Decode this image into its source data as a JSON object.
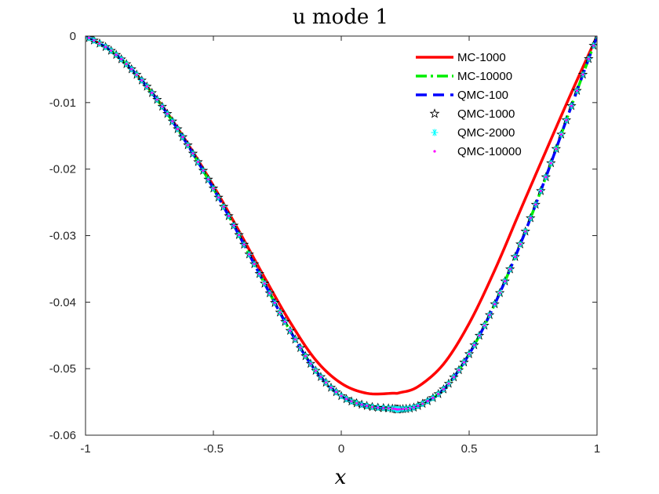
{
  "chart_data": {
    "type": "line",
    "title": "u mode 1",
    "xlabel": "x",
    "ylabel": "",
    "xlim": [
      -1,
      1
    ],
    "ylim": [
      -0.06,
      0
    ],
    "xticks": [
      -1,
      -0.5,
      0,
      0.5,
      1
    ],
    "xtick_labels": [
      "-1",
      "-0.5",
      "0",
      "0.5",
      "1"
    ],
    "yticks": [
      0,
      -0.01,
      -0.02,
      -0.03,
      -0.04,
      -0.05,
      -0.06
    ],
    "ytick_labels": [
      "0",
      "-0.01",
      "-0.02",
      "-0.03",
      "-0.04",
      "-0.05",
      "-0.06"
    ],
    "legend_position": "top-right",
    "x": [
      -1,
      -0.9,
      -0.8,
      -0.7,
      -0.6,
      -0.5,
      -0.4,
      -0.3,
      -0.2,
      -0.1,
      0,
      0.1,
      0.2,
      0.23,
      0.3,
      0.4,
      0.5,
      0.6,
      0.7,
      0.8,
      0.9,
      1
    ],
    "series": [
      {
        "name": "MC-1000",
        "color": "#ff0000",
        "style": "solid",
        "values": [
          0,
          -0.0022,
          -0.0058,
          -0.0105,
          -0.0162,
          -0.0225,
          -0.0293,
          -0.0363,
          -0.043,
          -0.0487,
          -0.0522,
          -0.0537,
          -0.0537,
          -0.0536,
          -0.0527,
          -0.0493,
          -0.0432,
          -0.0352,
          -0.0262,
          -0.0173,
          -0.0085,
          0
        ]
      },
      {
        "name": "MC-10000",
        "color": "#00ee00",
        "style": "dashdot",
        "values": [
          0,
          -0.0022,
          -0.0058,
          -0.0106,
          -0.0164,
          -0.0229,
          -0.0299,
          -0.0372,
          -0.0443,
          -0.0503,
          -0.0541,
          -0.0556,
          -0.056,
          -0.0561,
          -0.0556,
          -0.0531,
          -0.0478,
          -0.0403,
          -0.0313,
          -0.0212,
          -0.0105,
          0
        ]
      },
      {
        "name": "QMC-100",
        "color": "#0000ff",
        "style": "dashed",
        "values": [
          0,
          -0.0022,
          -0.0058,
          -0.0106,
          -0.0164,
          -0.0229,
          -0.0299,
          -0.0372,
          -0.0443,
          -0.0503,
          -0.0541,
          -0.0556,
          -0.056,
          -0.0561,
          -0.0556,
          -0.0531,
          -0.0478,
          -0.0403,
          -0.0313,
          -0.0212,
          -0.0105,
          0
        ]
      },
      {
        "name": "QMC-1000",
        "color": "#000000",
        "style": "star-marker",
        "values": [
          0,
          -0.0022,
          -0.0058,
          -0.0106,
          -0.0164,
          -0.0229,
          -0.0299,
          -0.0372,
          -0.0443,
          -0.0503,
          -0.0541,
          -0.0556,
          -0.056,
          -0.0561,
          -0.0556,
          -0.0531,
          -0.0478,
          -0.0403,
          -0.0313,
          -0.0212,
          -0.0105,
          0
        ]
      },
      {
        "name": "QMC-2000",
        "color": "#00ffff",
        "style": "asterisk-marker",
        "values": [
          0,
          -0.0022,
          -0.0058,
          -0.0106,
          -0.0164,
          -0.0229,
          -0.0299,
          -0.0372,
          -0.0443,
          -0.0503,
          -0.0541,
          -0.0556,
          -0.056,
          -0.0561,
          -0.0556,
          -0.0531,
          -0.0478,
          -0.0403,
          -0.0313,
          -0.0212,
          -0.0105,
          0
        ]
      },
      {
        "name": "QMC-10000",
        "color": "#ff00ff",
        "style": "point-marker",
        "values": [
          0,
          -0.0022,
          -0.0058,
          -0.0106,
          -0.0164,
          -0.0229,
          -0.0299,
          -0.0372,
          -0.0443,
          -0.0503,
          -0.0541,
          -0.0556,
          -0.056,
          -0.0561,
          -0.0556,
          -0.0531,
          -0.0478,
          -0.0403,
          -0.0313,
          -0.0212,
          -0.0105,
          0
        ]
      }
    ]
  }
}
